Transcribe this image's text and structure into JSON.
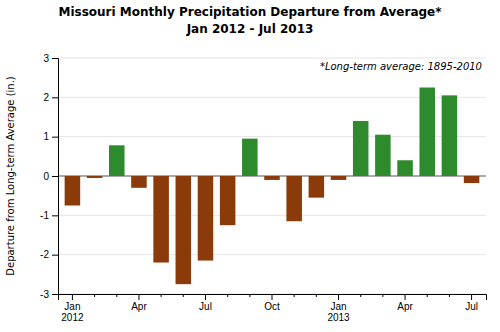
{
  "chart_data": {
    "type": "bar",
    "title": "Missouri Monthly Precipitation Departure from Average*",
    "subtitle": "Jan 2012 - Jul 2013",
    "annotation": "*Long-term average: 1895-2010",
    "y_label": "Departure from Long-term Average (in.)",
    "categories": [
      "Jan\n2012",
      null,
      null,
      "Apr",
      null,
      null,
      "Jul",
      null,
      null,
      "Oct",
      null,
      null,
      "Jan\n2013",
      null,
      null,
      "Apr",
      null,
      null,
      "Jul"
    ],
    "values": [
      -0.75,
      -0.05,
      0.78,
      -0.3,
      -2.2,
      -2.75,
      -2.15,
      -1.25,
      0.95,
      -0.1,
      -1.15,
      -0.55,
      -0.1,
      1.4,
      1.05,
      0.4,
      2.25,
      2.05,
      -0.18
    ],
    "colors": [
      "#8b3a0a",
      "#8b3a0a",
      "#2d8a2d",
      "#8b3a0a",
      "#8b3a0a",
      "#8b3a0a",
      "#8b3a0a",
      "#8b3a0a",
      "#2d8a2d",
      "#8b3a0a",
      "#8b3a0a",
      "#8b3a0a",
      "#8b3a0a",
      "#2d8a2d",
      "#2d8a2d",
      "#2d8a2d",
      "#2d8a2d",
      "#2d8a2d",
      "#8b3a0a"
    ],
    "ylim": [
      -3,
      3
    ],
    "yticks": [
      -3,
      -2,
      -1,
      0,
      1,
      2,
      3
    ],
    "grid": true
  }
}
